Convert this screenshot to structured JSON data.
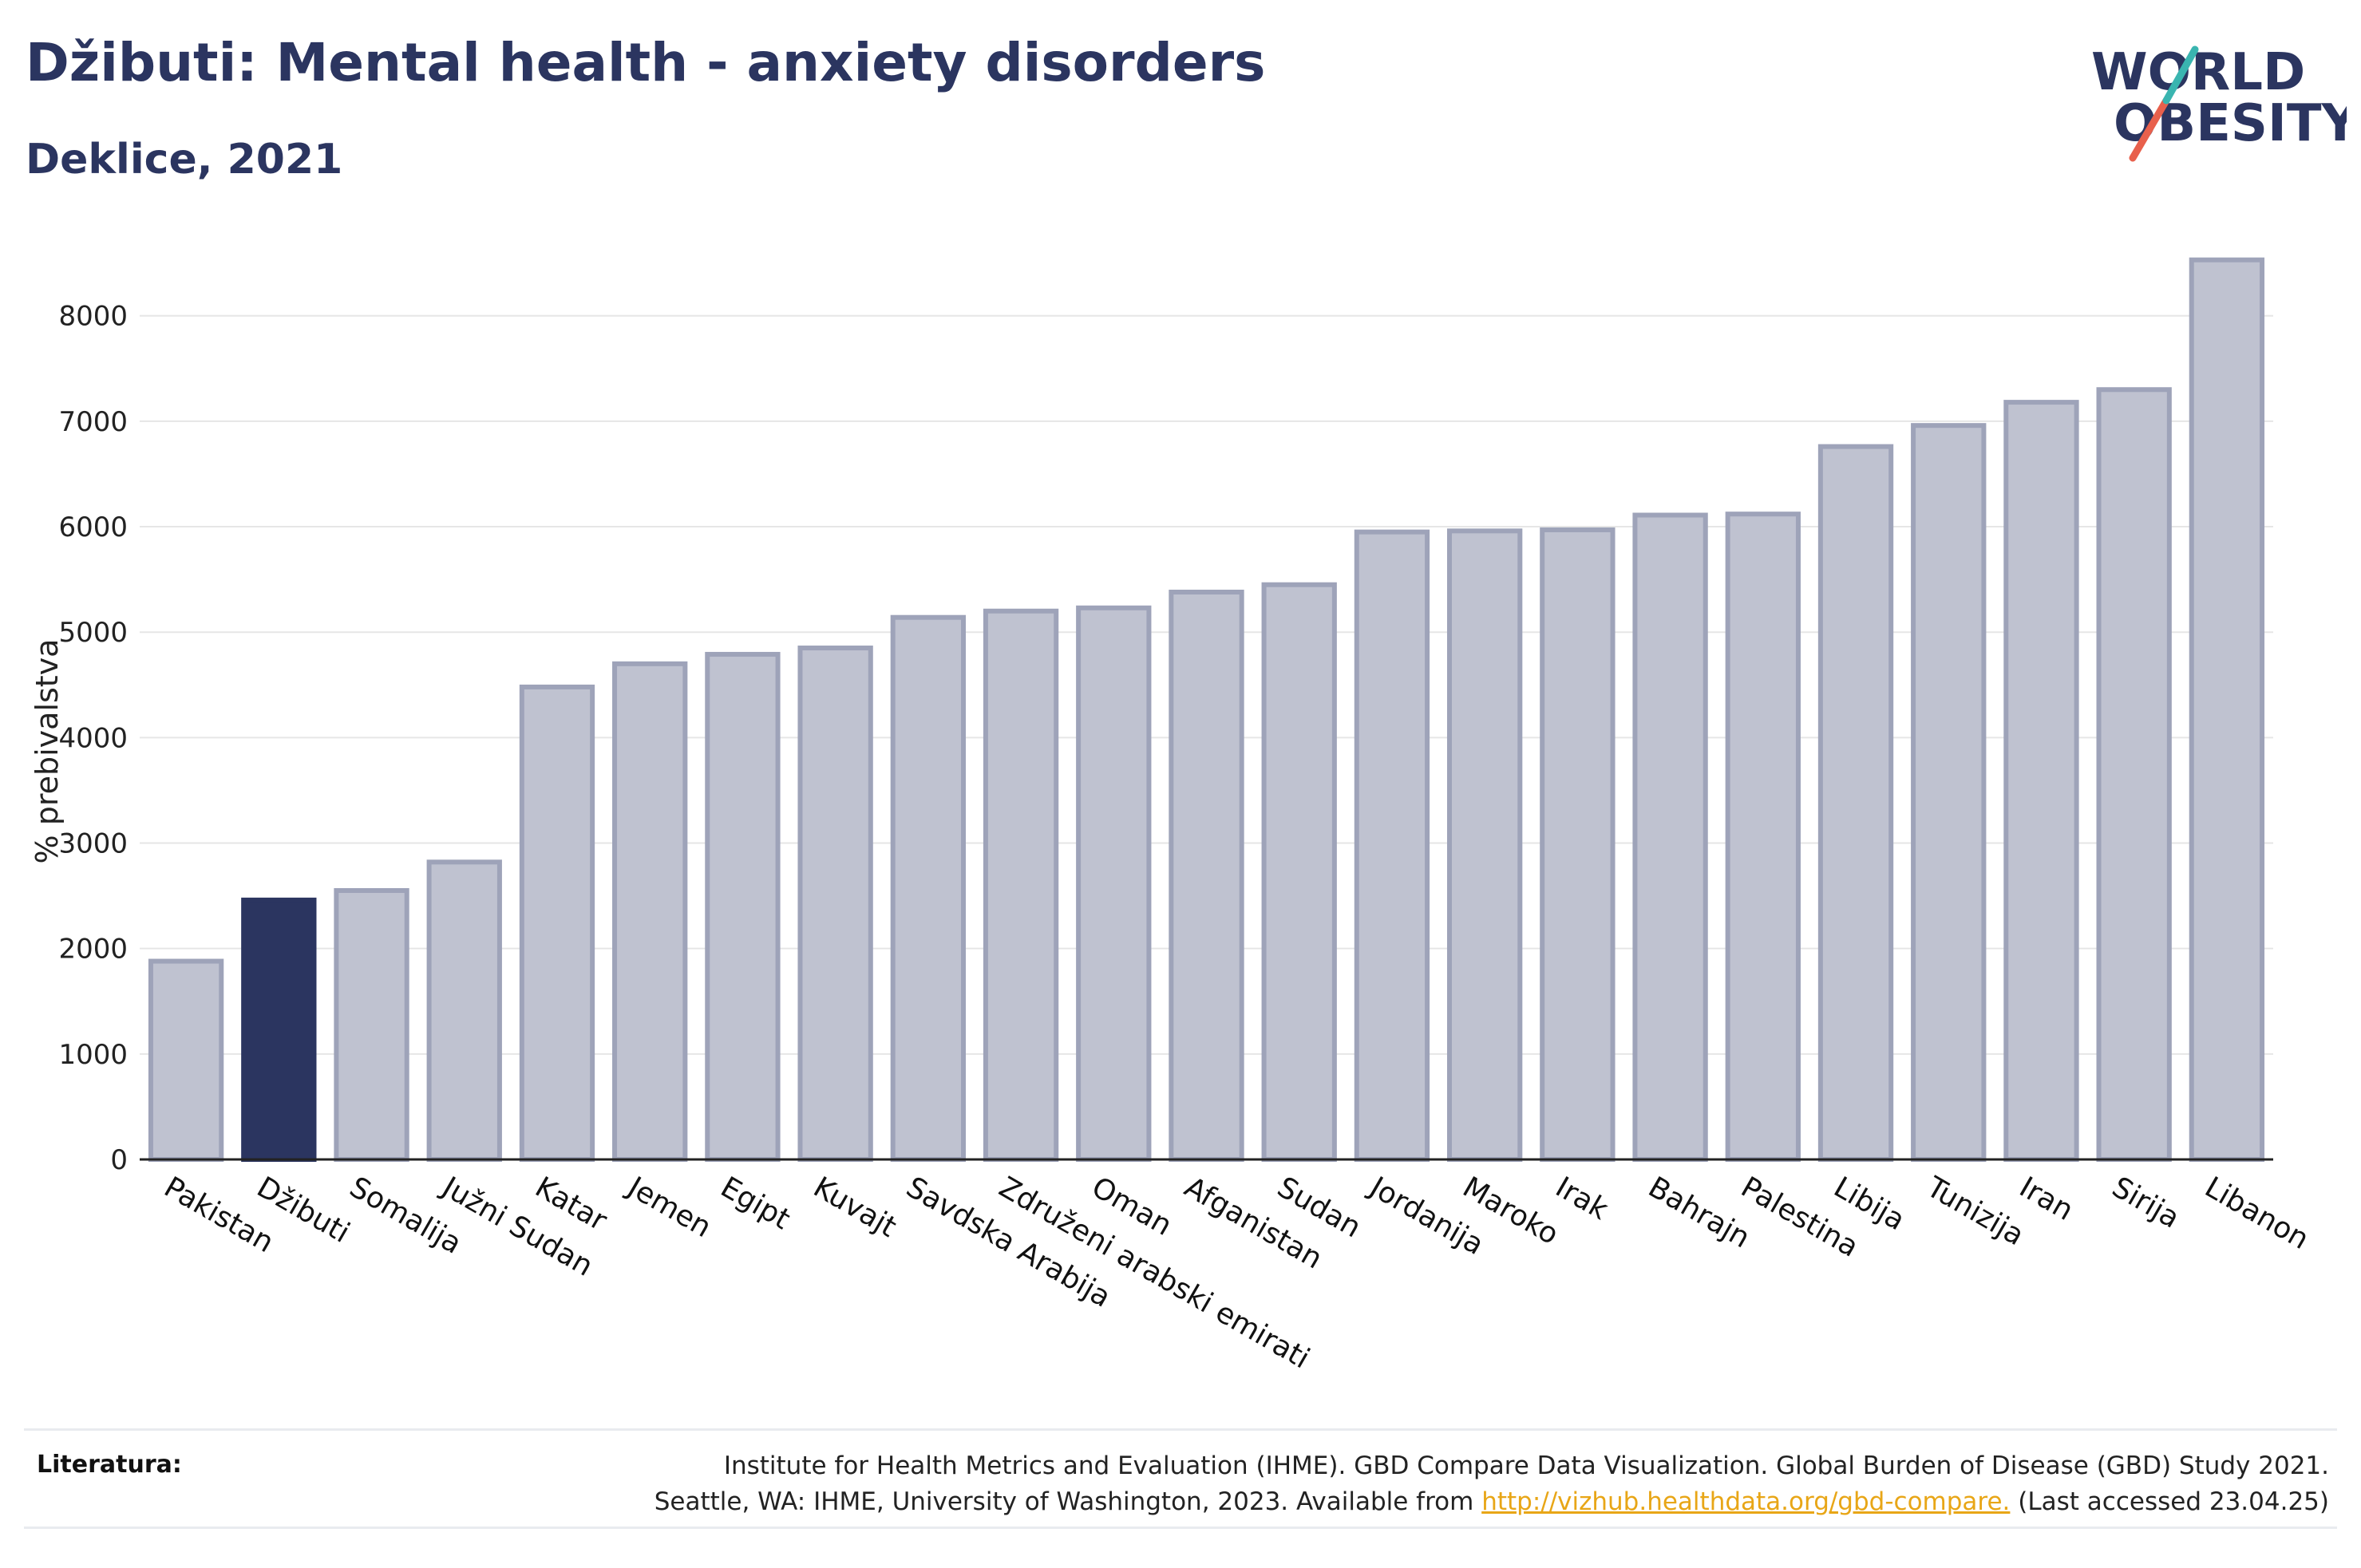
{
  "header": {
    "title": "Džibuti: Mental health - anxiety disorders",
    "subtitle": "Deklice, 2021"
  },
  "logo": {
    "line1": "WORLD",
    "line2": "OBESITY"
  },
  "footer": {
    "label": "Literatura:",
    "line1": "Institute for Health Metrics and Evaluation (IHME). GBD Compare Data Visualization. Global Burden of Disease (GBD) Study 2021.",
    "line2_prefix": "Seattle, WA: IHME, University of Washington, 2023. Available from",
    "link": "http://vizhub.healthdata.org/gbd-compare.",
    "line2_suffix": "(Last accessed 23.04.25)"
  },
  "colors": {
    "highlight": "#2b3560",
    "bar_fill": "#bfc2d0",
    "bar_stroke": "#9ea3b9",
    "grid": "#e6e6e6",
    "title": "#2b3560",
    "logo_teal": "#3ab5b0",
    "logo_red": "#e8604c"
  },
  "chart_data": {
    "type": "bar",
    "ylabel": "% prebivalstva",
    "ylim": [
      0,
      8800
    ],
    "yticks": [
      0,
      1000,
      2000,
      3000,
      4000,
      5000,
      6000,
      7000,
      8000
    ],
    "grid": true,
    "highlight": "Džibuti",
    "categories": [
      "Pakistan",
      "Džibuti",
      "Somalija",
      "Južni Sudan",
      "Katar",
      "Jemen",
      "Egipt",
      "Kuvajt",
      "Savdska Arabija",
      "Združeni arabski emirati",
      "Oman",
      "Afganistan",
      "Sudan",
      "Jordanija",
      "Maroko",
      "Irak",
      "Bahrajn",
      "Palestina",
      "Libija",
      "Tunizija",
      "Iran",
      "Sirija",
      "Libanon"
    ],
    "values": [
      1880,
      2460,
      2550,
      2820,
      4480,
      4700,
      4790,
      4850,
      5140,
      5200,
      5230,
      5380,
      5450,
      5950,
      5960,
      5970,
      6110,
      6120,
      6760,
      6960,
      7180,
      7300,
      8530
    ]
  }
}
